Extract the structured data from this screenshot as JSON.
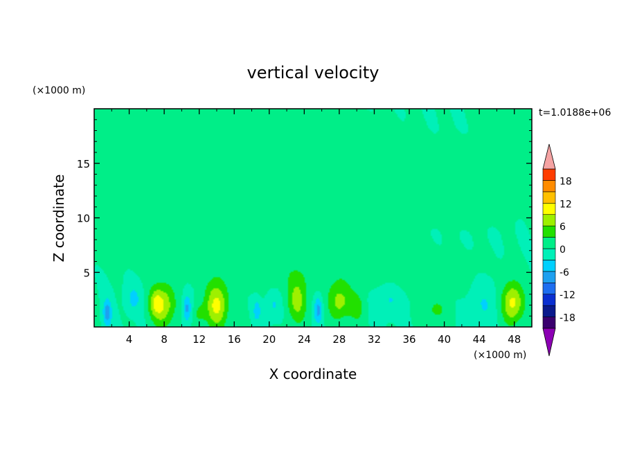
{
  "chart_data": {
    "type": "heatmap",
    "title": "vertical velocity",
    "xlabel": "X coordinate",
    "ylabel": "Z coordinate",
    "x_unit": "(×1000 m)",
    "y_unit": "(×1000 m)",
    "time_label": "t=1.0188e+06",
    "xlim": [
      0,
      50
    ],
    "ylim": [
      0,
      20
    ],
    "x_ticks": [
      4,
      8,
      12,
      16,
      20,
      24,
      28,
      32,
      36,
      40,
      44,
      48
    ],
    "x_tick_labels": [
      "4",
      "8",
      "12",
      "16",
      "20",
      "24",
      "28",
      "32",
      "36",
      "40",
      "44",
      "48"
    ],
    "y_ticks": [
      5,
      10,
      15
    ],
    "y_tick_labels": [
      "5",
      "10",
      "15"
    ],
    "colorbar": {
      "tick_values": [
        18,
        12,
        6,
        0,
        -6,
        -12,
        -18
      ],
      "tick_labels": [
        "18",
        "12",
        "6",
        "0",
        "-6",
        "-12",
        "-18"
      ],
      "levels": [
        -21,
        -18,
        -15,
        -12,
        -9,
        -6,
        -3,
        0,
        3,
        6,
        9,
        12,
        15,
        18,
        21
      ],
      "colors": [
        "#3a006e",
        "#0a1a8c",
        "#0a2fd0",
        "#1e6ef0",
        "#1ea0f0",
        "#00d0ff",
        "#00f0b8",
        "#00ee88",
        "#22e000",
        "#9ef000",
        "#ffff00",
        "#ffc000",
        "#ff8c00",
        "#ff3c00"
      ],
      "over_color": "#f5a3a3",
      "under_color": "#8c00b4"
    },
    "background_color": "#00ee88",
    "features": [
      {
        "x": 1.5,
        "z": 1.3,
        "sx": 0.35,
        "sz": 0.9,
        "w": -8
      },
      {
        "x": 7.0,
        "z": 2.2,
        "sx": 0.55,
        "sz": 1.0,
        "w": 6
      },
      {
        "x": 8.0,
        "z": 2.0,
        "sx": 0.9,
        "sz": 1.4,
        "w": 8
      },
      {
        "x": 10.6,
        "z": 1.7,
        "sx": 0.35,
        "sz": 0.9,
        "w": -7
      },
      {
        "x": 14.0,
        "z": 2.0,
        "sx": 0.9,
        "sz": 1.5,
        "w": 10
      },
      {
        "x": 18.6,
        "z": 1.5,
        "sx": 0.3,
        "sz": 0.7,
        "w": -5
      },
      {
        "x": 23.2,
        "z": 2.4,
        "sx": 0.8,
        "sz": 1.5,
        "w": 7
      },
      {
        "x": 25.6,
        "z": 1.6,
        "sx": 0.35,
        "sz": 0.9,
        "w": -7
      },
      {
        "x": 28.0,
        "z": 2.3,
        "sx": 0.9,
        "sz": 1.2,
        "w": 7
      },
      {
        "x": 30.0,
        "z": 1.8,
        "sx": 0.7,
        "sz": 1.0,
        "w": 4
      },
      {
        "x": 33.6,
        "z": 2.6,
        "sx": 1.3,
        "sz": 1.1,
        "w": -3.5
      },
      {
        "x": 47.8,
        "z": 2.2,
        "sx": 0.9,
        "sz": 1.3,
        "w": 10
      },
      {
        "x": 44.5,
        "z": 2.2,
        "sx": 1.2,
        "sz": 1.6,
        "w": -3
      },
      {
        "x": 4.5,
        "z": 2.6,
        "sx": 0.6,
        "sz": 0.9,
        "w": -4
      },
      {
        "x": 20.5,
        "z": 2.0,
        "sx": 0.6,
        "sz": 0.9,
        "w": -3.5
      },
      {
        "x": 39.0,
        "z": 1.5,
        "sx": 1.0,
        "sz": 0.8,
        "w": 3.5
      },
      {
        "x": 12.0,
        "z": 1.2,
        "sx": 0.5,
        "sz": 0.7,
        "w": 3.5
      },
      {
        "x": 4.0,
        "z": 16.5,
        "sx": 3.5,
        "sz": 2.0,
        "w": 1.5
      },
      {
        "x": 10.0,
        "z": 18.0,
        "sx": 3.0,
        "sz": 1.5,
        "w": 1.5
      },
      {
        "x": 18.0,
        "z": 14.5,
        "sx": 3.0,
        "sz": 1.6,
        "w": 1.5
      },
      {
        "x": 28.0,
        "z": 13.0,
        "sx": 4.5,
        "sz": 2.2,
        "w": 1.5
      },
      {
        "x": 22.0,
        "z": 10.0,
        "sx": 1.8,
        "sz": 3.0,
        "w": 1.5
      },
      {
        "x": 17.0,
        "z": 10.5,
        "sx": 1.6,
        "sz": 1.8,
        "w": 1.5
      },
      {
        "x": 33.0,
        "z": 8.0,
        "sx": 1.8,
        "sz": 1.0,
        "w": 1.5
      },
      {
        "x": 41.0,
        "z": 15.0,
        "sx": 1.8,
        "sz": 0.9,
        "w": 1.5
      },
      {
        "x": 42.0,
        "z": 10.8,
        "sx": 2.5,
        "sz": 0.8,
        "w": 1.5
      },
      {
        "x": 48.0,
        "z": 16.5,
        "sx": 1.5,
        "sz": 2.5,
        "w": 1.5
      },
      {
        "x": 10.5,
        "z": 11.5,
        "sx": 1.8,
        "sz": 1.8,
        "w": 1.5
      },
      {
        "x": 3.0,
        "z": 8.5,
        "sx": 2.5,
        "sz": 1.5,
        "w": 1.5
      },
      {
        "x": 12.0,
        "z": 7.0,
        "sx": 3.0,
        "sz": 1.5,
        "w": 1.5
      },
      {
        "x": 25.0,
        "z": 5.0,
        "sx": 8.0,
        "sz": 1.3,
        "w": 1.5
      },
      {
        "x": 38.0,
        "z": 4.5,
        "sx": 5.0,
        "sz": 1.2,
        "w": 1.5
      }
    ]
  }
}
